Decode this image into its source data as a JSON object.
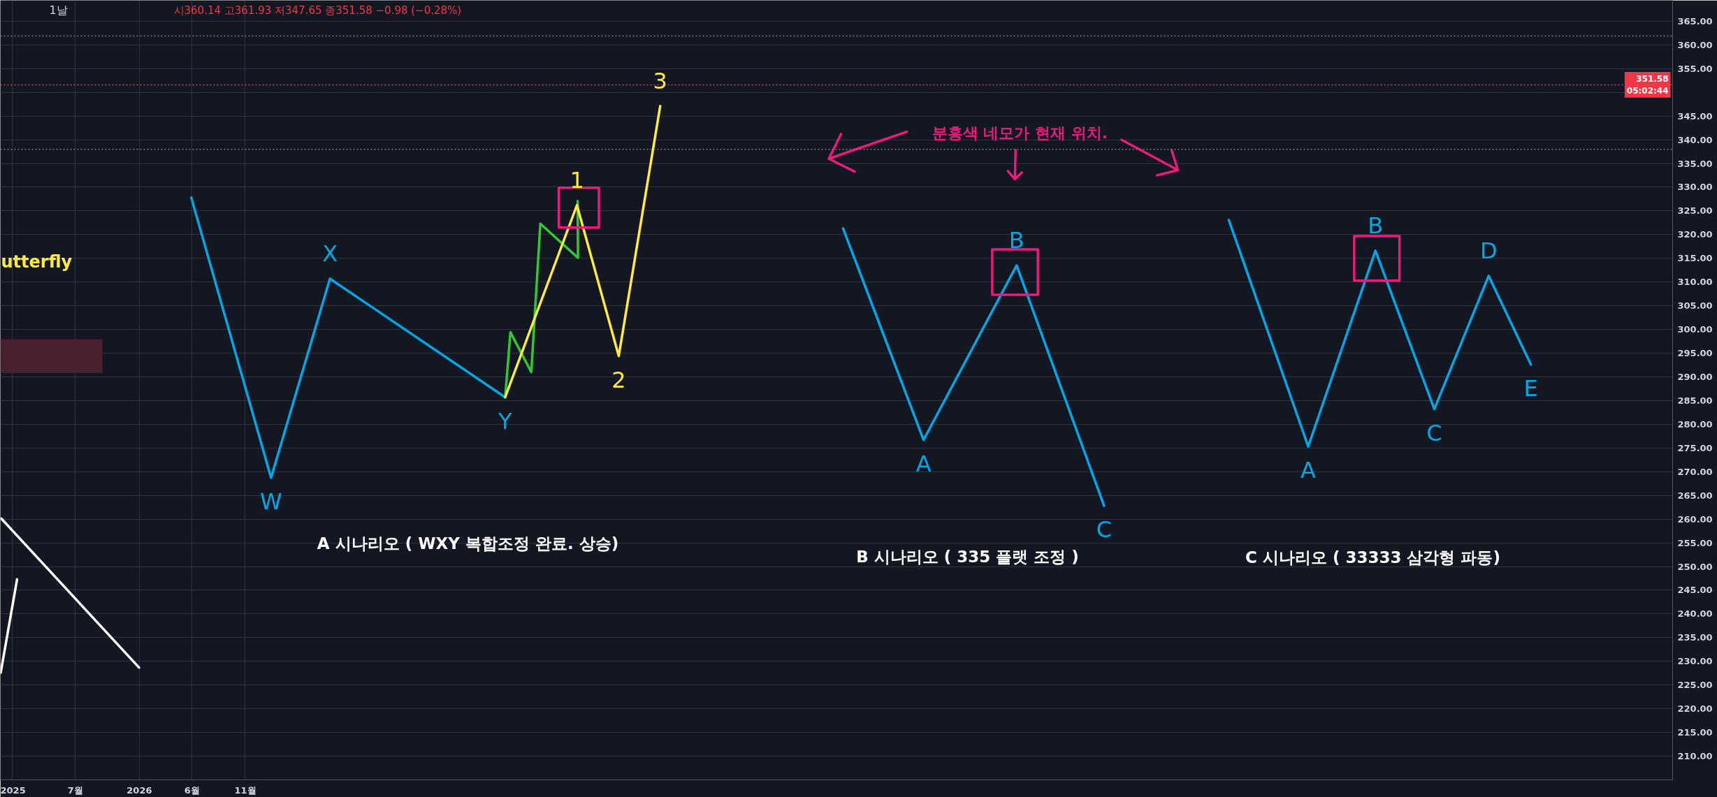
{
  "chart_data": {
    "type": "line",
    "title": "1날",
    "subtitle": "시360.14 고361.93 저347.65 종351.58 −0.98 (−0.28%)",
    "xlim": [
      "2024-11-28",
      "2038-01-19"
    ],
    "ylim": [
      205.0,
      369.4
    ],
    "xticks": [
      {
        "value": "2025-01",
        "label": "2025"
      },
      {
        "value": "2025-07",
        "label": "7월"
      },
      {
        "value": "2026-01",
        "label": "2026"
      },
      {
        "value": "2026-06",
        "label": "6월"
      },
      {
        "value": "2026-11",
        "label": "11월"
      }
    ],
    "yticks": [
      {
        "value": 210,
        "label": "210.00"
      },
      {
        "value": 215,
        "label": "215.00"
      },
      {
        "value": 220,
        "label": "220.00"
      },
      {
        "value": 225,
        "label": "225.00"
      },
      {
        "value": 230,
        "label": "230.00"
      },
      {
        "value": 235,
        "label": "235.00"
      },
      {
        "value": 240,
        "label": "240.00"
      },
      {
        "value": 245,
        "label": "245.00"
      },
      {
        "value": 250,
        "label": "250.00"
      },
      {
        "value": 255,
        "label": "255.00"
      },
      {
        "value": 260,
        "label": "260.00"
      },
      {
        "value": 265,
        "label": "265.00"
      },
      {
        "value": 270,
        "label": "270.00"
      },
      {
        "value": 275,
        "label": "275.00"
      },
      {
        "value": 280,
        "label": "280.00"
      },
      {
        "value": 285,
        "label": "285.00"
      },
      {
        "value": 290,
        "label": "290.00"
      },
      {
        "value": 295,
        "label": "295.00"
      },
      {
        "value": 300,
        "label": "300.00"
      },
      {
        "value": 305,
        "label": "305.00"
      },
      {
        "value": 310,
        "label": "310.00"
      },
      {
        "value": 315,
        "label": "315.00"
      },
      {
        "value": 320,
        "label": "320.00"
      },
      {
        "value": 325,
        "label": "325.00"
      },
      {
        "value": 330,
        "label": "330.00"
      },
      {
        "value": 335,
        "label": "335.00"
      },
      {
        "value": 340,
        "label": "340.00"
      },
      {
        "value": 345,
        "label": "345.00"
      },
      {
        "value": 350,
        "label": null
      },
      {
        "value": 355,
        "label": "355.00"
      },
      {
        "value": 360,
        "label": "360.00"
      },
      {
        "value": 365,
        "label": "365.00"
      }
    ],
    "grid": true,
    "series": [
      {
        "color": "#4a2130",
        "x": [
          "2024-11-28",
          "2025-09-17"
        ],
        "values": [
          null,
          null
        ],
        "lower": [
          290.8,
          290.8
        ],
        "upper": [
          297.9,
          297.9
        ]
      },
      {
        "color": "#ffffff",
        "x": [
          "2024-12-01",
          "2025-12-31"
        ],
        "values": [
          260.1,
          228.7
        ]
      },
      {
        "color": "#ffffff",
        "x": [
          "2024-11-29",
          "2025-01-15"
        ],
        "values": [
          227.6,
          247.3
        ]
      },
      {
        "color": "#00a8e8",
        "x": [
          "2026-05-30",
          "2027-01-14",
          "2027-07-02",
          "2028-11-16"
        ],
        "values": [
          327.8,
          268.7,
          310.7,
          285.7
        ]
      },
      {
        "color": "#33c733",
        "x": [
          "2028-11-16",
          "2028-12-01",
          "2029-01-30",
          "2029-02-25",
          "2029-06-13",
          "2029-06-12"
        ],
        "values": [
          285.7,
          299.4,
          291.0,
          322.3,
          315.1,
          327.1
        ]
      },
      {
        "color": "#ffeb3b",
        "x": [
          "2028-11-16",
          "2029-06-10",
          "2029-10-08",
          "2030-02-04"
        ],
        "values": [
          285.7,
          326.2,
          294.4,
          347.1
        ]
      },
      {
        "color": "#ec1a7a",
        "x": [
          "2029-04-19",
          "2029-08-12",
          "2029-08-12",
          "2029-04-19",
          "2029-04-19",
          "2029-08-12"
        ],
        "values": [
          329.9,
          329.9,
          321.5,
          321.5,
          329.9,
          329.9
        ]
      },
      {
        "color": "#ec1a7a",
        "x": [
          "2031-07-08",
          "2031-06-03",
          "2031-08-16",
          "2031-06-03",
          "2032-01-13"
        ],
        "values": [
          341.2,
          336.0,
          333.3,
          336.0,
          341.7
        ]
      },
      {
        "color": "#ec1a7a",
        "x": [
          "2032-10-29",
          "2032-11-18",
          "2032-12-08",
          "2032-11-18",
          "2032-11-20"
        ],
        "values": [
          333.4,
          331.7,
          333.1,
          331.7,
          337.8
        ]
      },
      {
        "color": "#ec1a7a",
        "x": [
          "2034-02-11",
          "2034-03-01",
          "2033-12-31",
          "2034-03-01",
          "2033-09-20"
        ],
        "values": [
          337.8,
          333.6,
          332.5,
          333.6,
          340.0
        ]
      },
      {
        "color": "#00a8e8",
        "x": [
          "2031-07-14",
          "2032-03-01",
          "2032-11-23",
          "2033-08-01"
        ],
        "values": [
          321.3,
          276.7,
          313.5,
          262.8
        ]
      },
      {
        "color": "#ec1a7a",
        "x": [
          "2032-09-14",
          "2033-01-23",
          "2033-01-23",
          "2032-09-14",
          "2032-09-14",
          "2033-01-23"
        ],
        "values": [
          316.9,
          316.9,
          307.3,
          307.3,
          316.9,
          316.9
        ]
      },
      {
        "color": "#00a8e8",
        "x": [
          "2034-07-25",
          "2035-03-10",
          "2035-09-19",
          "2036-03-06",
          "2036-08-09",
          "2036-12-08"
        ],
        "values": [
          323.1,
          275.3,
          316.6,
          283.2,
          311.3,
          292.6
        ]
      },
      {
        "color": "#ec1a7a",
        "x": [
          "2035-07-20",
          "2035-11-27",
          "2035-11-27",
          "2035-07-20",
          "2035-07-20",
          "2035-11-27"
        ],
        "values": [
          319.7,
          319.7,
          310.3,
          310.3,
          319.7,
          319.7
        ]
      }
    ],
    "ref_lines": [
      {
        "axis": "y",
        "value": 361.9,
        "color": "#787b86",
        "line_style": "dotted"
      },
      {
        "axis": "y",
        "value": 338.0,
        "color": "#787b86",
        "line_style": "dotted"
      },
      {
        "axis": "y",
        "value": 351.58,
        "label": "351.58\n05:02:44",
        "color": "#f23645",
        "line_style": "dotted"
      }
    ],
    "annotations": [
      "utterfly",
      "분홍색 네모가 현재 위치.",
      "A 시나리오 ( WXY 복합조정 완료. 상승)",
      "B 시나리오 ( 335 플랫 조정 )",
      "C 시나리오 ( 33333 삼각형 파동)",
      {
        "text": "W",
        "x": "2027-01-14",
        "y": 268.7
      },
      {
        "text": "X",
        "x": "2027-07-02",
        "y": 310.7
      },
      {
        "text": "Y",
        "x": "2028-11-16",
        "y": 285.7
      },
      {
        "text": "1",
        "x": "2029-06-10",
        "y": 326.2
      },
      {
        "text": "2",
        "x": "2029-10-08",
        "y": 294.4
      },
      {
        "text": "3",
        "x": "2030-02-04",
        "y": 347.1
      },
      {
        "text": "A",
        "x": "2032-03-01",
        "y": 276.7
      },
      {
        "text": "B",
        "x": "2032-11-23",
        "y": 313.5
      },
      {
        "text": "C",
        "x": "2033-08-01",
        "y": 262.8
      },
      {
        "text": "A",
        "x": "2035-03-10",
        "y": 275.3
      },
      {
        "text": "B",
        "x": "2035-09-19",
        "y": 316.6
      },
      {
        "text": "C",
        "x": "2036-03-06",
        "y": 283.2
      },
      {
        "text": "D",
        "x": "2036-08-09",
        "y": 311.3
      },
      {
        "text": "E",
        "x": "2036-12-08",
        "y": 292.6
      }
    ]
  }
}
